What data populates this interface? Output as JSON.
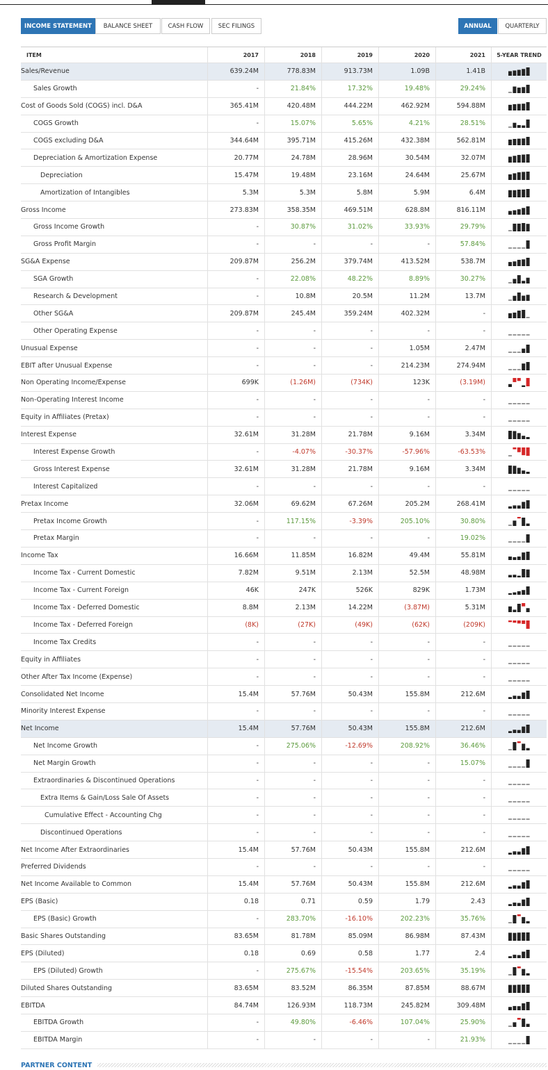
{
  "tabs": [
    "INCOME STATEMENT",
    "BALANCE SHEET",
    "CASH FLOW",
    "SEC FILINGS"
  ],
  "periods": [
    "ANNUAL",
    "QUARTERLY"
  ],
  "table": {
    "columns": [
      "ITEM",
      "2017",
      "2018",
      "2019",
      "2020",
      "2021",
      "5-YEAR TREND"
    ],
    "rows": [
      {
        "label": "Sales/Revenue",
        "values": [
          "639.24M",
          "778.83M",
          "913.73M",
          "1.09B",
          "1.41B"
        ]
      },
      {
        "label": "Sales Growth",
        "values": [
          "-",
          "21.84%",
          "17.32%",
          "19.48%",
          "29.24%"
        ]
      },
      {
        "label": "Cost of Goods Sold (COGS) incl. D&A",
        "values": [
          "365.41M",
          "420.48M",
          "444.22M",
          "462.92M",
          "594.88M"
        ]
      },
      {
        "label": "COGS Growth",
        "values": [
          "-",
          "15.07%",
          "5.65%",
          "4.21%",
          "28.51%"
        ]
      },
      {
        "label": "COGS excluding D&A",
        "values": [
          "344.64M",
          "395.71M",
          "415.26M",
          "432.38M",
          "562.81M"
        ]
      },
      {
        "label": "Depreciation & Amortization Expense",
        "values": [
          "20.77M",
          "24.78M",
          "28.96M",
          "30.54M",
          "32.07M"
        ]
      },
      {
        "label": "Depreciation",
        "values": [
          "15.47M",
          "19.48M",
          "23.16M",
          "24.64M",
          "25.67M"
        ]
      },
      {
        "label": "Amortization of Intangibles",
        "values": [
          "5.3M",
          "5.3M",
          "5.8M",
          "5.9M",
          "6.4M"
        ]
      },
      {
        "label": "Gross Income",
        "values": [
          "273.83M",
          "358.35M",
          "469.51M",
          "628.8M",
          "816.11M"
        ]
      },
      {
        "label": "Gross Income Growth",
        "values": [
          "-",
          "30.87%",
          "31.02%",
          "33.93%",
          "29.79%"
        ]
      },
      {
        "label": "Gross Profit Margin",
        "values": [
          "-",
          "-",
          "-",
          "-",
          "57.84%"
        ]
      },
      {
        "label": "SG&A Expense",
        "values": [
          "209.87M",
          "256.2M",
          "379.74M",
          "413.52M",
          "538.7M"
        ]
      },
      {
        "label": "SGA Growth",
        "values": [
          "-",
          "22.08%",
          "48.22%",
          "8.89%",
          "30.27%"
        ]
      },
      {
        "label": "Research & Development",
        "values": [
          "-",
          "10.8M",
          "20.5M",
          "11.2M",
          "13.7M"
        ]
      },
      {
        "label": "Other SG&A",
        "values": [
          "209.87M",
          "245.4M",
          "359.24M",
          "402.32M",
          "-"
        ]
      },
      {
        "label": "Other Operating Expense",
        "values": [
          "-",
          "-",
          "-",
          "-",
          "-"
        ]
      },
      {
        "label": "Unusual Expense",
        "values": [
          "-",
          "-",
          "-",
          "1.05M",
          "2.47M"
        ]
      },
      {
        "label": "EBIT after Unusual Expense",
        "values": [
          "-",
          "-",
          "-",
          "214.23M",
          "274.94M"
        ]
      },
      {
        "label": "Non Operating Income/Expense",
        "values": [
          "699K",
          "(1.26M)",
          "(734K)",
          "123K",
          "(3.19M)"
        ]
      },
      {
        "label": "Non-Operating Interest Income",
        "values": [
          "-",
          "-",
          "-",
          "-",
          "-"
        ]
      },
      {
        "label": "Equity in Affiliates (Pretax)",
        "values": [
          "-",
          "-",
          "-",
          "-",
          "-"
        ]
      },
      {
        "label": "Interest Expense",
        "values": [
          "32.61M",
          "31.28M",
          "21.78M",
          "9.16M",
          "3.34M"
        ]
      },
      {
        "label": "Interest Expense Growth",
        "values": [
          "-",
          "-4.07%",
          "-30.37%",
          "-57.96%",
          "-63.53%"
        ]
      },
      {
        "label": "Gross Interest Expense",
        "values": [
          "32.61M",
          "31.28M",
          "21.78M",
          "9.16M",
          "3.34M"
        ]
      },
      {
        "label": "Interest Capitalized",
        "values": [
          "-",
          "-",
          "-",
          "-",
          "-"
        ]
      },
      {
        "label": "Pretax Income",
        "values": [
          "32.06M",
          "69.62M",
          "67.26M",
          "205.2M",
          "268.41M"
        ]
      },
      {
        "label": "Pretax Income Growth",
        "values": [
          "-",
          "117.15%",
          "-3.39%",
          "205.10%",
          "30.80%"
        ]
      },
      {
        "label": "Pretax Margin",
        "values": [
          "-",
          "-",
          "-",
          "-",
          "19.02%"
        ]
      },
      {
        "label": "Income Tax",
        "values": [
          "16.66M",
          "11.85M",
          "16.82M",
          "49.4M",
          "55.81M"
        ]
      },
      {
        "label": "Income Tax - Current Domestic",
        "values": [
          "7.82M",
          "9.51M",
          "2.13M",
          "52.5M",
          "48.98M"
        ]
      },
      {
        "label": "Income Tax - Current Foreign",
        "values": [
          "46K",
          "247K",
          "526K",
          "829K",
          "1.73M"
        ]
      },
      {
        "label": "Income Tax - Deferred Domestic",
        "values": [
          "8.8M",
          "2.13M",
          "14.22M",
          "(3.87M)",
          "5.31M"
        ]
      },
      {
        "label": "Income Tax - Deferred Foreign",
        "values": [
          "(8K)",
          "(27K)",
          "(49K)",
          "(62K)",
          "(209K)"
        ]
      },
      {
        "label": "Income Tax Credits",
        "values": [
          "-",
          "-",
          "-",
          "-",
          "-"
        ]
      },
      {
        "label": "Equity in Affiliates",
        "values": [
          "-",
          "-",
          "-",
          "-",
          "-"
        ]
      },
      {
        "label": "Other After Tax Income (Expense)",
        "values": [
          "-",
          "-",
          "-",
          "-",
          "-"
        ]
      },
      {
        "label": "Consolidated Net Income",
        "values": [
          "15.4M",
          "57.76M",
          "50.43M",
          "155.8M",
          "212.6M"
        ]
      },
      {
        "label": "Minority Interest Expense",
        "values": [
          "-",
          "-",
          "-",
          "-",
          "-"
        ]
      },
      {
        "label": "Net Income",
        "values": [
          "15.4M",
          "57.76M",
          "50.43M",
          "155.8M",
          "212.6M"
        ]
      },
      {
        "label": "Net Income Growth",
        "values": [
          "-",
          "275.06%",
          "-12.69%",
          "208.92%",
          "36.46%"
        ]
      },
      {
        "label": "Net Margin Growth",
        "values": [
          "-",
          "-",
          "-",
          "-",
          "15.07%"
        ]
      },
      {
        "label": "Extraordinaries & Discontinued Operations",
        "values": [
          "-",
          "-",
          "-",
          "-",
          "-"
        ]
      },
      {
        "label": "Extra Items & Gain/Loss Sale Of Assets",
        "values": [
          "-",
          "-",
          "-",
          "-",
          "-"
        ]
      },
      {
        "label": "Cumulative Effect - Accounting Chg",
        "values": [
          "-",
          "-",
          "-",
          "-",
          "-"
        ]
      },
      {
        "label": "Discontinued Operations",
        "values": [
          "-",
          "-",
          "-",
          "-",
          "-"
        ]
      },
      {
        "label": "Net Income After Extraordinaries",
        "values": [
          "15.4M",
          "57.76M",
          "50.43M",
          "155.8M",
          "212.6M"
        ]
      },
      {
        "label": "Preferred Dividends",
        "values": [
          "-",
          "-",
          "-",
          "-",
          "-"
        ]
      },
      {
        "label": "Net Income Available to Common",
        "values": [
          "15.4M",
          "57.76M",
          "50.43M",
          "155.8M",
          "212.6M"
        ]
      },
      {
        "label": "EPS (Basic)",
        "values": [
          "0.18",
          "0.71",
          "0.59",
          "1.79",
          "2.43"
        ]
      },
      {
        "label": "EPS (Basic) Growth",
        "values": [
          "-",
          "283.70%",
          "-16.10%",
          "202.23%",
          "35.76%"
        ]
      },
      {
        "label": "Basic Shares Outstanding",
        "values": [
          "83.65M",
          "81.78M",
          "85.09M",
          "86.98M",
          "87.43M"
        ]
      },
      {
        "label": "EPS (Diluted)",
        "values": [
          "0.18",
          "0.69",
          "0.58",
          "1.77",
          "2.4"
        ]
      },
      {
        "label": "EPS (Diluted) Growth",
        "values": [
          "-",
          "275.67%",
          "-15.54%",
          "203.65%",
          "35.19%"
        ]
      },
      {
        "label": "Diluted Shares Outstanding",
        "values": [
          "83.65M",
          "83.52M",
          "86.35M",
          "87.85M",
          "88.67M"
        ]
      },
      {
        "label": "EBITDA",
        "values": [
          "84.74M",
          "126.93M",
          "118.73M",
          "245.82M",
          "309.48M"
        ]
      },
      {
        "label": "EBITDA Growth",
        "values": [
          "-",
          "49.80%",
          "-6.46%",
          "107.04%",
          "25.90%"
        ]
      },
      {
        "label": "EBITDA Margin",
        "values": [
          "-",
          "-",
          "-",
          "-",
          "21.93%"
        ]
      }
    ]
  },
  "footer": "PARTNER CONTENT"
}
